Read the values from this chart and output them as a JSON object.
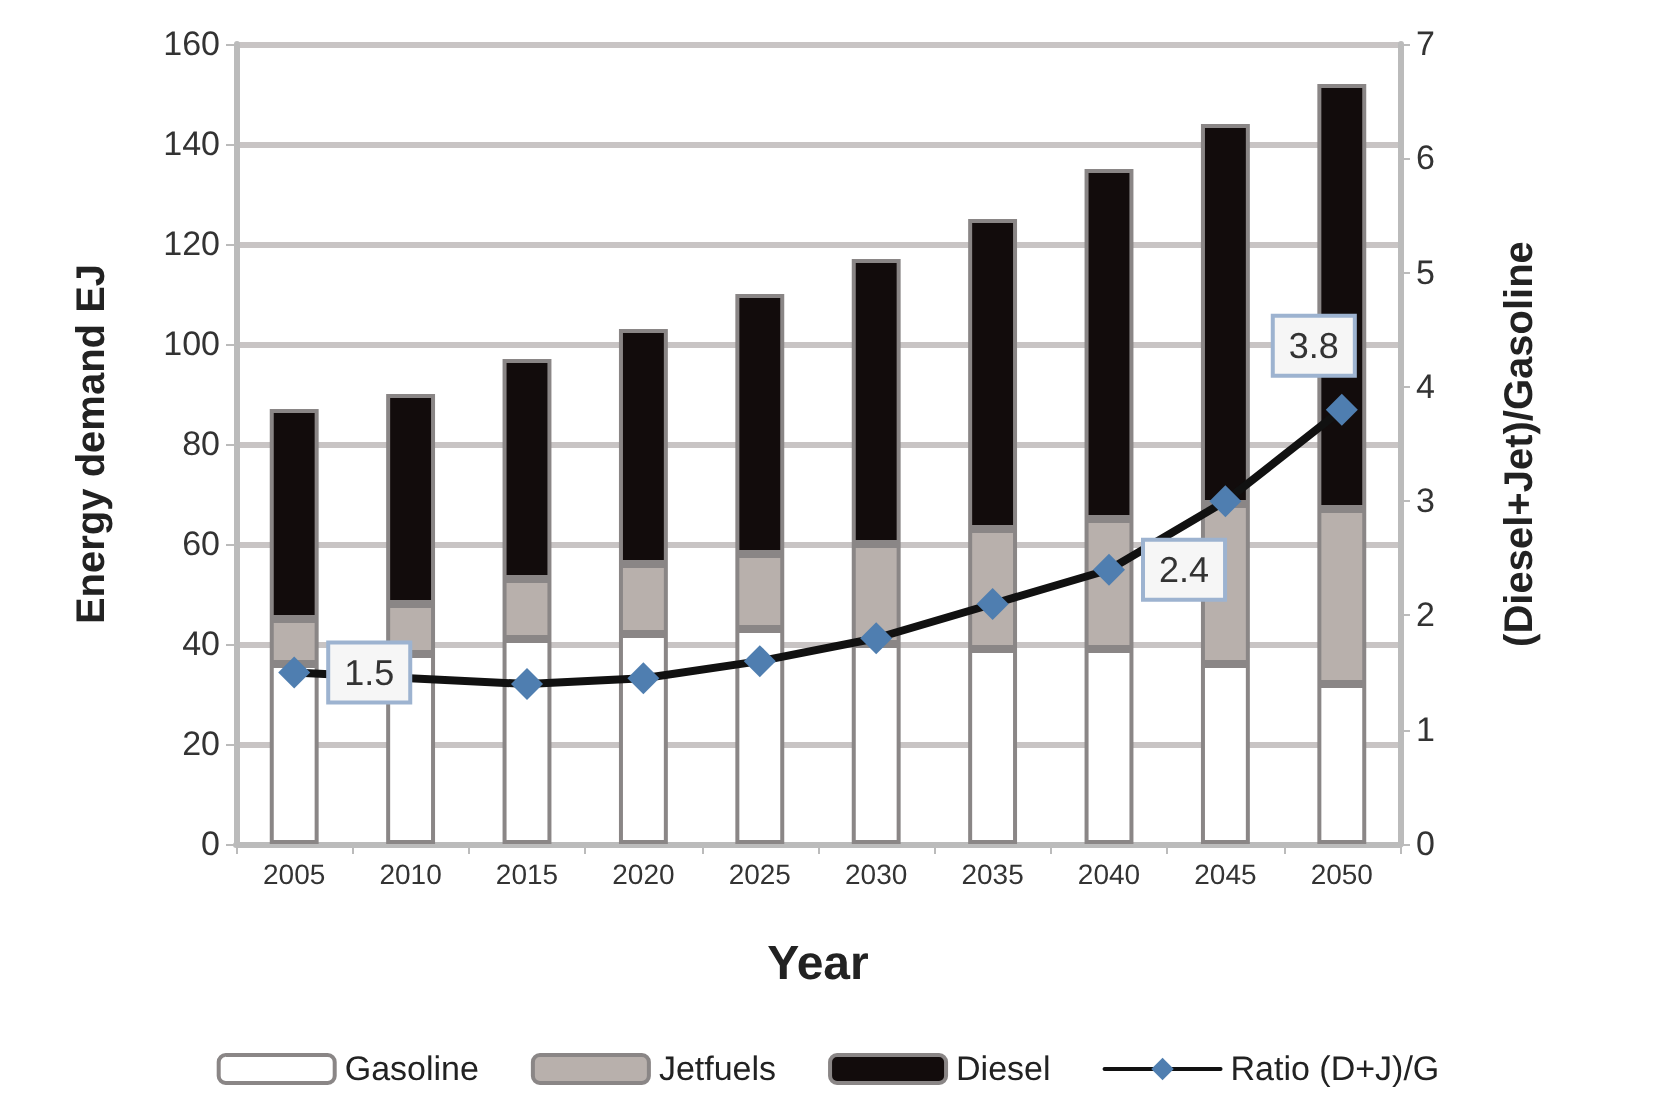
{
  "chart_data": {
    "type": "bar",
    "stacked": true,
    "xlabel": "Year",
    "ylabel": "Energy demand EJ",
    "y2label": "(Diesel+Jet)/Gasoline",
    "categories": [
      "2005",
      "2010",
      "2015",
      "2020",
      "2025",
      "2030",
      "2035",
      "2040",
      "2045",
      "2050"
    ],
    "series": [
      {
        "name": "Gasoline",
        "color": "#ffffff",
        "values": [
          36,
          38,
          41,
          42,
          43,
          40,
          39,
          39,
          36,
          32
        ]
      },
      {
        "name": "Jetfuels",
        "color": "#b8b0ac",
        "values": [
          9,
          10,
          12,
          14,
          15,
          20,
          24,
          26,
          32,
          35
        ]
      },
      {
        "name": "Diesel",
        "color": "#120c0c",
        "values": [
          42,
          42,
          44,
          47,
          52,
          57,
          62,
          70,
          76,
          85
        ]
      },
      {
        "name": "Ratio (D+J)/G",
        "type": "line",
        "axis": "y2",
        "color": "#4f7eb0",
        "marker": "diamond",
        "values": [
          1.5,
          null,
          1.4,
          1.45,
          1.6,
          1.8,
          2.1,
          2.4,
          3.0,
          3.8
        ],
        "value_labels": [
          "1.5",
          null,
          null,
          null,
          null,
          null,
          null,
          "2.4",
          null,
          "3.8"
        ]
      }
    ],
    "ylim": [
      0,
      160
    ],
    "yticks": [
      0,
      20,
      40,
      60,
      80,
      100,
      120,
      140,
      160
    ],
    "y2lim": [
      0,
      7
    ],
    "y2ticks": [
      0,
      1,
      2,
      3,
      4,
      5,
      6,
      7
    ],
    "grid": "y",
    "legend": "bottom"
  }
}
